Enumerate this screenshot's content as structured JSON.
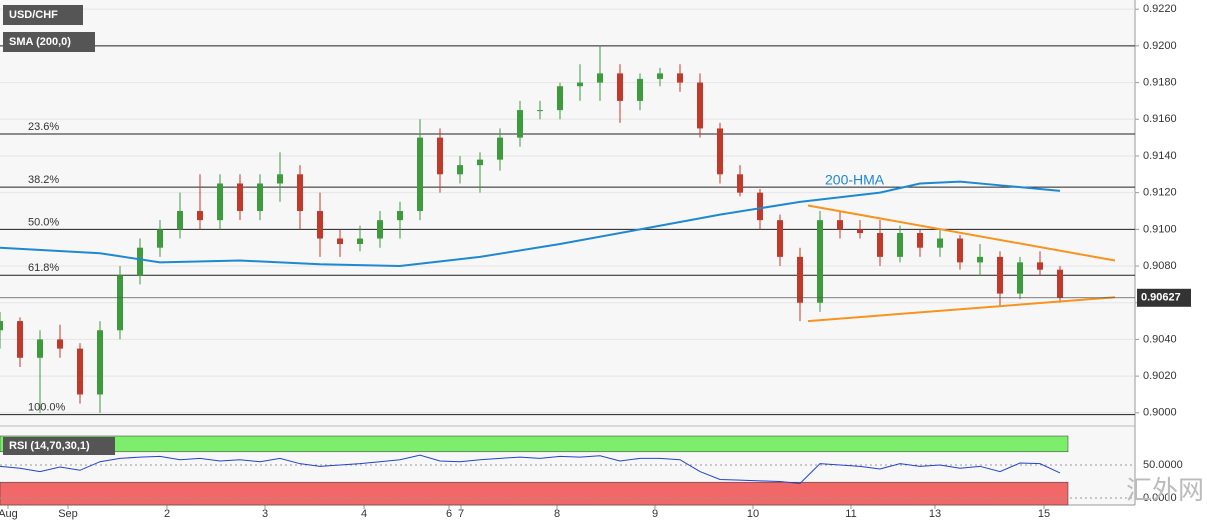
{
  "chart_data": [
    {
      "type": "candlestick",
      "title": "USD/CHF",
      "indicator": "SMA (200,0)",
      "x": [
        0,
        1,
        2,
        3,
        4,
        5,
        6,
        7,
        8,
        9,
        10,
        11,
        12,
        13,
        14,
        15,
        16,
        17,
        18,
        19,
        20,
        21,
        22,
        23,
        24,
        25,
        26,
        27,
        28,
        29,
        30,
        31,
        32,
        33,
        34,
        35,
        36,
        37,
        38,
        39,
        40,
        41,
        42,
        43,
        44,
        45,
        46,
        47,
        48,
        49,
        50,
        51,
        52,
        53
      ],
      "open": [
        0.9045,
        0.905,
        0.903,
        0.904,
        0.9035,
        0.901,
        0.9045,
        0.9075,
        0.909,
        0.91,
        0.911,
        0.9105,
        0.9125,
        0.911,
        0.9125,
        0.913,
        0.911,
        0.9095,
        0.9092,
        0.9095,
        0.9105,
        0.911,
        0.915,
        0.913,
        0.9135,
        0.9138,
        0.915,
        0.9165,
        0.9165,
        0.9178,
        0.918,
        0.9185,
        0.917,
        0.9182,
        0.9185,
        0.918,
        0.9155,
        0.913,
        0.912,
        0.9105,
        0.9085,
        0.906,
        0.9105,
        0.91,
        0.9098,
        0.9085,
        0.9098,
        0.909,
        0.9095,
        0.9082,
        0.9085,
        0.9065,
        0.9082,
        0.9078
      ],
      "high": [
        0.9055,
        0.9052,
        0.9045,
        0.9048,
        0.9038,
        0.905,
        0.908,
        0.9095,
        0.9105,
        0.912,
        0.913,
        0.913,
        0.913,
        0.913,
        0.9142,
        0.9135,
        0.912,
        0.91,
        0.9102,
        0.911,
        0.9115,
        0.916,
        0.9155,
        0.914,
        0.9142,
        0.9155,
        0.917,
        0.917,
        0.918,
        0.919,
        0.92,
        0.919,
        0.9185,
        0.9188,
        0.919,
        0.9185,
        0.9158,
        0.9135,
        0.9122,
        0.9108,
        0.909,
        0.911,
        0.911,
        0.9105,
        0.9105,
        0.9102,
        0.91,
        0.91,
        0.9097,
        0.9092,
        0.9088,
        0.9085,
        0.9088,
        0.908
      ],
      "low": [
        0.9035,
        0.9025,
        0.9,
        0.903,
        0.9005,
        0.9,
        0.904,
        0.907,
        0.9085,
        0.9095,
        0.91,
        0.91,
        0.9105,
        0.9105,
        0.9115,
        0.91,
        0.9085,
        0.9085,
        0.9088,
        0.909,
        0.9095,
        0.9105,
        0.912,
        0.9125,
        0.912,
        0.9132,
        0.9145,
        0.916,
        0.916,
        0.917,
        0.917,
        0.9158,
        0.9165,
        0.9178,
        0.9175,
        0.915,
        0.9125,
        0.9118,
        0.91,
        0.908,
        0.905,
        0.9055,
        0.9095,
        0.9095,
        0.908,
        0.9082,
        0.9085,
        0.9085,
        0.9078,
        0.9075,
        0.9058,
        0.9062,
        0.9075,
        0.906
      ],
      "close": [
        0.905,
        0.903,
        0.904,
        0.9035,
        0.901,
        0.9045,
        0.9075,
        0.909,
        0.91,
        0.911,
        0.9105,
        0.9125,
        0.911,
        0.9125,
        0.913,
        0.911,
        0.9095,
        0.9092,
        0.9095,
        0.9105,
        0.911,
        0.915,
        0.913,
        0.9135,
        0.9138,
        0.915,
        0.9165,
        0.9165,
        0.9178,
        0.918,
        0.9185,
        0.917,
        0.9182,
        0.9185,
        0.918,
        0.9155,
        0.913,
        0.912,
        0.9105,
        0.9085,
        0.906,
        0.9105,
        0.91,
        0.9098,
        0.9085,
        0.9098,
        0.909,
        0.9095,
        0.9082,
        0.9085,
        0.9065,
        0.9082,
        0.9078,
        0.90627
      ],
      "up_color": "#3d9a3d",
      "down_color": "#c0392b",
      "series": [
        {
          "name": "200-HMA",
          "color": "#1e88d2",
          "x": [
            0,
            5,
            8,
            12,
            16,
            20,
            24,
            28,
            32,
            36,
            40,
            44,
            46,
            48,
            50,
            53
          ],
          "values": [
            0.909,
            0.9087,
            0.9082,
            0.9083,
            0.9081,
            0.908,
            0.9085,
            0.9092,
            0.91,
            0.9108,
            0.9115,
            0.912,
            0.9125,
            0.9126,
            0.9124,
            0.9121
          ]
        }
      ],
      "fib_levels": [
        {
          "value": 0.92,
          "label": null
        },
        {
          "value": 0.9152,
          "label": "23.6%"
        },
        {
          "value": 0.9123,
          "label": "38.2%"
        },
        {
          "value": 0.91,
          "label": "50.0%"
        },
        {
          "value": 0.9075,
          "label": "61.8%"
        },
        {
          "value": 0.8999,
          "label": "100.0%"
        }
      ],
      "trendlines": [
        {
          "x": [
            40.4,
            55.75
          ],
          "values": [
            0.9113,
            0.9083
          ],
          "color": "#f7931e"
        },
        {
          "x": [
            40.4,
            55.75
          ],
          "values": [
            0.905,
            0.9063
          ],
          "color": "#f7931e"
        }
      ],
      "last_price": 0.90627,
      "xlim": [
        0,
        56.75
      ],
      "ylim": [
        0.8995,
        0.9225
      ],
      "yticks": [
        {
          "value": 0.9,
          "label": "0.9000"
        },
        {
          "value": 0.902,
          "label": "0.9020"
        },
        {
          "value": 0.904,
          "label": "0.9040"
        },
        {
          "value": 0.906,
          "label": "0.9060"
        },
        {
          "value": 0.908,
          "label": "0.9080"
        },
        {
          "value": 0.91,
          "label": "0.9100"
        },
        {
          "value": 0.912,
          "label": "0.9120"
        },
        {
          "value": 0.914,
          "label": "0.9140"
        },
        {
          "value": 0.916,
          "label": "0.9160"
        },
        {
          "value": 0.918,
          "label": "0.9180"
        },
        {
          "value": 0.92,
          "label": "0.9200"
        },
        {
          "value": 0.922,
          "label": "0.9220"
        }
      ],
      "xticks": [
        {
          "value": 0.4,
          "label": "Aug"
        },
        {
          "value": 3.4,
          "label": "Sep"
        },
        {
          "value": 8.35,
          "label": "2"
        },
        {
          "value": 13.25,
          "label": "3"
        },
        {
          "value": 18.2,
          "label": "4"
        },
        {
          "value": 22.45,
          "label": "6"
        },
        {
          "value": 23.05,
          "label": "7"
        },
        {
          "value": 27.85,
          "label": "8"
        },
        {
          "value": 32.75,
          "label": "9"
        },
        {
          "value": 37.65,
          "label": "10"
        },
        {
          "value": 42.55,
          "label": "11"
        },
        {
          "value": 46.75,
          "label": "13"
        },
        {
          "value": 52.2,
          "label": "15"
        }
      ],
      "grid": true,
      "watermark": "汇外网"
    },
    {
      "type": "line",
      "title": "RSI (14,70,30,1)",
      "color": "#2244cc",
      "x": [
        0,
        1,
        2,
        3,
        4,
        5,
        6,
        7,
        8,
        9,
        10,
        11,
        12,
        13,
        14,
        15,
        16,
        17,
        18,
        19,
        20,
        21,
        22,
        23,
        24,
        25,
        26,
        27,
        28,
        29,
        30,
        31,
        32,
        33,
        34,
        35,
        36,
        37,
        38,
        39,
        40,
        41,
        42,
        43,
        44,
        45,
        46,
        47,
        48,
        49,
        50,
        51,
        52,
        53
      ],
      "values": [
        48,
        45,
        40,
        47,
        42,
        55,
        60,
        62,
        63,
        58,
        60,
        56,
        58,
        55,
        60,
        52,
        48,
        50,
        52,
        55,
        58,
        65,
        56,
        55,
        58,
        60,
        62,
        60,
        63,
        62,
        64,
        56,
        60,
        60,
        58,
        40,
        28,
        27,
        26,
        25,
        22,
        52,
        50,
        48,
        44,
        52,
        48,
        50,
        45,
        48,
        40,
        53,
        52,
        38
      ],
      "bands": [
        {
          "from": 70,
          "to": 100,
          "color": "#7ded6c"
        },
        {
          "from": 0,
          "to": 30,
          "color": "#f06868"
        }
      ],
      "xlim": [
        0,
        56.75
      ],
      "ylim": [
        0,
        100
      ],
      "yticks": [
        {
          "value": 50,
          "label": "50.0000"
        },
        {
          "value": 0,
          "label": "0.0000"
        }
      ]
    }
  ]
}
